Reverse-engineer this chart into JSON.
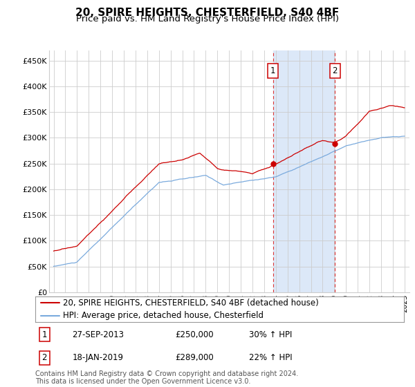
{
  "title": "20, SPIRE HEIGHTS, CHESTERFIELD, S40 4BF",
  "subtitle": "Price paid vs. HM Land Registry's House Price Index (HPI)",
  "ylim": [
    0,
    470000
  ],
  "yticks": [
    0,
    50000,
    100000,
    150000,
    200000,
    250000,
    300000,
    350000,
    400000,
    450000
  ],
  "ytick_labels": [
    "£0",
    "£50K",
    "£100K",
    "£150K",
    "£200K",
    "£250K",
    "£300K",
    "£350K",
    "£400K",
    "£450K"
  ],
  "sale1_date_num": 2013.75,
  "sale1_price": 250000,
  "sale1_label": "1",
  "sale1_pct": "30% ↑ HPI",
  "sale1_date_str": "27-SEP-2013",
  "sale2_date_num": 2019.05,
  "sale2_price": 289000,
  "sale2_label": "2",
  "sale2_pct": "22% ↑ HPI",
  "sale2_date_str": "18-JAN-2019",
  "legend_line1": "20, SPIRE HEIGHTS, CHESTERFIELD, S40 4BF (detached house)",
  "legend_line2": "HPI: Average price, detached house, Chesterfield",
  "footer": "Contains HM Land Registry data © Crown copyright and database right 2024.\nThis data is licensed under the Open Government Licence v3.0.",
  "line_color_red": "#cc0000",
  "line_color_blue": "#7aaadd",
  "shade_color": "#dce8f8",
  "grid_color": "#cccccc",
  "background_color": "#ffffff",
  "title_fontsize": 11,
  "subtitle_fontsize": 9.5,
  "tick_fontsize": 8,
  "legend_fontsize": 8.5,
  "footer_fontsize": 7,
  "xmin": 1994.6,
  "xmax": 2025.4
}
